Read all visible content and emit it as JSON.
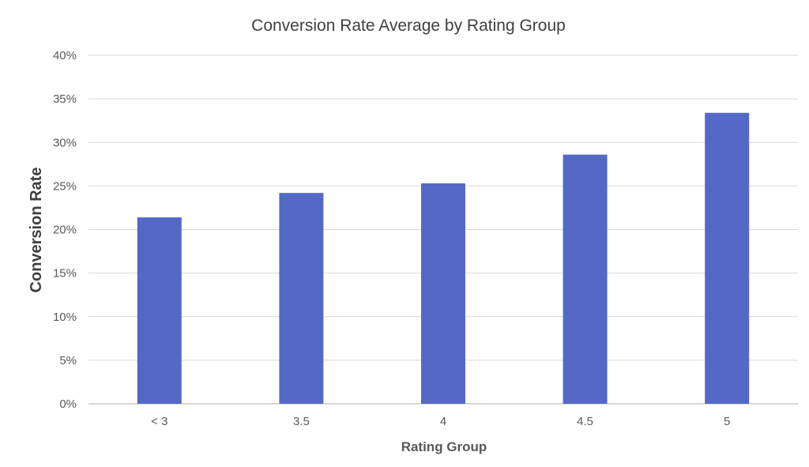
{
  "chart_data": {
    "type": "bar",
    "title": "Conversion Rate Average by Rating Group",
    "xlabel": "Rating Group",
    "ylabel": "Conversion Rate",
    "categories": [
      "< 3",
      "3.5",
      "4",
      "4.5",
      "5"
    ],
    "values": [
      21.4,
      24.2,
      25.3,
      28.6,
      33.4
    ],
    "ylim": [
      0,
      40
    ],
    "yticks": [
      "0%",
      "5%",
      "10%",
      "15%",
      "20%",
      "25%",
      "30%",
      "35%",
      "40%"
    ],
    "grid": true,
    "legend": "none",
    "bar_color": "#5469c6"
  }
}
